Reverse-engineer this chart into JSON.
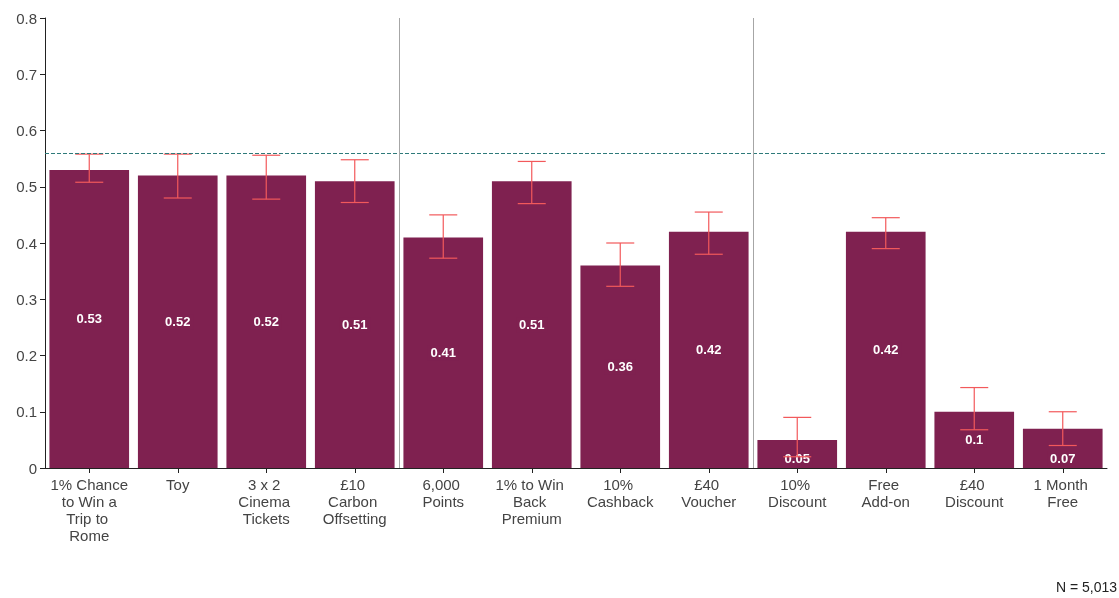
{
  "chart_data": {
    "type": "bar",
    "categories": [
      "1% Chance to Win a Trip to Rome",
      "Toy",
      "3 x 2 Cinema Tickets",
      "£10 Carbon Offsetting",
      "6,000 Points",
      "1% to Win Back Premium",
      "10% Cashback",
      "£40 Voucher",
      "10% Discount",
      "Free Add-on",
      "£40 Discount",
      "1 Month Free"
    ],
    "values": [
      0.53,
      0.52,
      0.52,
      0.51,
      0.41,
      0.51,
      0.36,
      0.42,
      0.05,
      0.42,
      0.1,
      0.07
    ],
    "color": "#7f2150",
    "errors": [
      [
        0.508,
        0.558
      ],
      [
        0.48,
        0.558
      ],
      [
        0.478,
        0.556
      ],
      [
        0.472,
        0.548
      ],
      [
        0.373,
        0.45
      ],
      [
        0.47,
        0.545
      ],
      [
        0.323,
        0.4
      ],
      [
        0.38,
        0.455
      ],
      [
        0.02,
        0.09
      ],
      [
        0.39,
        0.445
      ],
      [
        0.068,
        0.143
      ],
      [
        0.04,
        0.1
      ]
    ],
    "data_labels": true,
    "ylim": [
      0,
      0.8
    ],
    "yticks": [
      0,
      0.1,
      0.2,
      0.3,
      0.4,
      0.5,
      0.6,
      0.7,
      0.8
    ],
    "ref_lines": [
      {
        "axis": "y",
        "value": 0.557,
        "color": "#2e7a7a",
        "line_style": "dashed"
      }
    ],
    "annotations": [
      "N = 5,013"
    ],
    "grid": false
  }
}
